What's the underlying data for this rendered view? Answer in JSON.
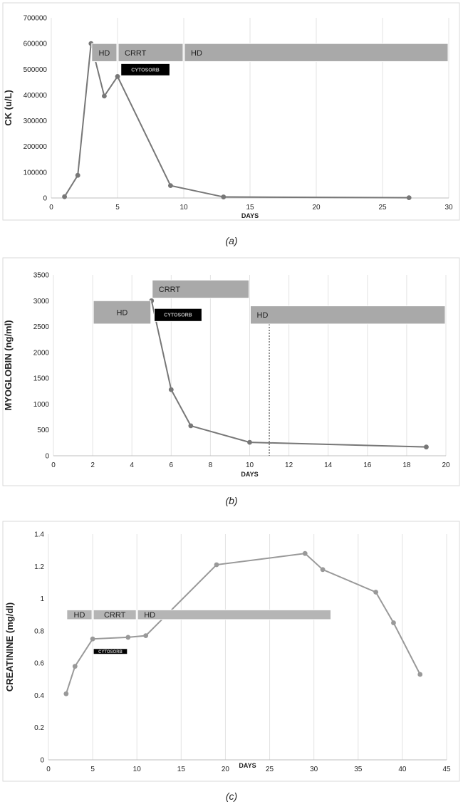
{
  "chart_data": [
    {
      "type": "line",
      "xlabel": "DAYS",
      "ylabel": "CK (u/L)",
      "xlim": [
        0,
        30
      ],
      "ylim": [
        0,
        700000
      ],
      "x_ticks": [
        "0",
        "5",
        "10",
        "15",
        "20",
        "25",
        "30"
      ],
      "y_ticks": [
        "0",
        "100000",
        "200000",
        "300000",
        "400000",
        "500000",
        "600000",
        "700000"
      ],
      "grid": "vertical",
      "series": [
        {
          "x": [
            1,
            2,
            3,
            4,
            5,
            9,
            13,
            27
          ],
          "values": [
            5000,
            88000,
            600000,
            396000,
            472000,
            48000,
            4000,
            1000
          ],
          "color": "#777777"
        }
      ],
      "annotations": [
        {
          "label": "HD",
          "x_start": 3,
          "x_end": 5,
          "y_low": 530000,
          "y_high": 600000,
          "fill": "#a9a9a9",
          "text_color": "#222222"
        },
        {
          "label": "CRRT",
          "x_start": 5,
          "x_end": 10,
          "y_low": 530000,
          "y_high": 600000,
          "fill": "#a9a9a9",
          "text_color": "#222222"
        },
        {
          "label": "HD",
          "x_start": 10,
          "x_end": 30,
          "y_low": 530000,
          "y_high": 600000,
          "fill": "#a9a9a9",
          "text_color": "#222222"
        },
        {
          "label": "CYTOSORB",
          "x_start": 5.2,
          "x_end": 9,
          "y_low": 475000,
          "y_high": 522000,
          "fill": "#000000",
          "text_color": "#bbbbbb"
        }
      ]
    },
    {
      "type": "line",
      "xlabel": "DAYS",
      "ylabel": "MYOGLOBIN (ng/ml)",
      "xlim": [
        0,
        20
      ],
      "ylim": [
        0,
        3500
      ],
      "x_ticks": [
        "0",
        "2",
        "4",
        "6",
        "8",
        "10",
        "12",
        "14",
        "16",
        "18",
        "20"
      ],
      "y_ticks": [
        "0",
        "500",
        "1000",
        "1500",
        "2000",
        "2500",
        "3000",
        "3500"
      ],
      "grid": "vertical",
      "series": [
        {
          "x": [
            5,
            6,
            7,
            10,
            19
          ],
          "values": [
            3000,
            1280,
            580,
            260,
            170
          ],
          "color": "#777777"
        }
      ],
      "reference_line": {
        "x": 11,
        "style": "dotted"
      },
      "annotations": [
        {
          "label": "CRRT",
          "x_start": 5,
          "x_end": 10,
          "y_low": 3050,
          "y_high": 3400,
          "fill": "#a9a9a9",
          "text_color": "#222222"
        },
        {
          "label": "HD",
          "x_start": 2,
          "x_end": 5,
          "y_low": 2550,
          "y_high": 3000,
          "fill": "#a9a9a9",
          "text_color": "#222222"
        },
        {
          "label": "CYTOSORB",
          "x_start": 5.1,
          "x_end": 7.6,
          "y_low": 2600,
          "y_high": 2850,
          "fill": "#000000",
          "text_color": "#bbbbbb"
        },
        {
          "label": "HD",
          "x_start": 10,
          "x_end": 20,
          "y_low": 2550,
          "y_high": 2900,
          "fill": "#a9a9a9",
          "text_color": "#222222"
        }
      ]
    },
    {
      "type": "line",
      "xlabel": "DAYS",
      "ylabel": "CREATININE (mg/dl)",
      "xlim": [
        0,
        45
      ],
      "ylim": [
        0,
        1.4
      ],
      "x_ticks": [
        "0",
        "5",
        "10",
        "15",
        "20",
        "25",
        "30",
        "35",
        "40",
        "45"
      ],
      "y_ticks": [
        "0",
        "0.2",
        "0.4",
        "0.6",
        "0.8",
        "1",
        "1.2",
        "1.4"
      ],
      "grid": "vertical",
      "series": [
        {
          "x": [
            2,
            3,
            5,
            9,
            11,
            19,
            29,
            31,
            37,
            39,
            42
          ],
          "values": [
            0.41,
            0.58,
            0.75,
            0.76,
            0.77,
            1.21,
            1.28,
            1.18,
            1.04,
            0.85,
            0.53
          ],
          "color": "#999999"
        }
      ],
      "annotations": [
        {
          "label": "HD",
          "x_start": 2,
          "x_end": 5,
          "y_low": 0.87,
          "y_high": 0.93,
          "fill": "#b5b5b5",
          "text_color": "#222222"
        },
        {
          "label": "CRRT",
          "x_start": 5,
          "x_end": 10,
          "y_low": 0.87,
          "y_high": 0.93,
          "fill": "#b5b5b5",
          "text_color": "#222222"
        },
        {
          "label": "HD",
          "x_start": 10,
          "x_end": 32,
          "y_low": 0.87,
          "y_high": 0.93,
          "fill": "#b5b5b5",
          "text_color": "#222222"
        },
        {
          "label": "CYTOSORB",
          "x_start": 5,
          "x_end": 9,
          "y_low": 0.655,
          "y_high": 0.69,
          "fill": "#000000",
          "text_color": "#bbbbbb"
        }
      ]
    }
  ],
  "captions": [
    "(a)",
    "(b)",
    "(c)"
  ]
}
